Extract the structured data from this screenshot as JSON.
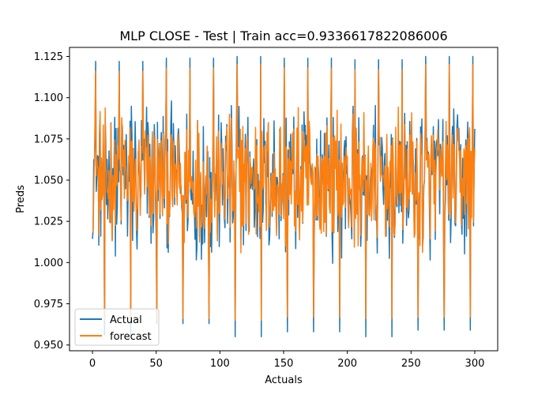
{
  "chart_data": {
    "type": "line",
    "title": "MLP CLOSE - Test | Train acc=0.9336617822086006",
    "xlabel": "Actuals",
    "ylabel": "Preds",
    "xlim": [
      -18,
      318
    ],
    "ylim": [
      0.9465,
      1.1305
    ],
    "xticks": [
      0,
      50,
      100,
      150,
      200,
      250,
      300
    ],
    "xtick_labels": [
      "0",
      "50",
      "100",
      "150",
      "200",
      "250",
      "300"
    ],
    "yticks": [
      0.95,
      0.975,
      1.0,
      1.025,
      1.05,
      1.075,
      1.1,
      1.125
    ],
    "ytick_labels": [
      "0.950",
      "0.975",
      "1.000",
      "1.025",
      "1.050",
      "1.075",
      "1.100",
      "1.125"
    ],
    "grid": false,
    "legend_position": "lower-left",
    "x_start": 0,
    "x_end": 300,
    "x_step": 0.5,
    "series": [
      {
        "name": "Actual",
        "color": "#1f77b4",
        "mean": 1.05,
        "amplitude": 0.045,
        "peak_values": [
          1.122,
          1.124,
          1.125,
          1.124,
          1.123,
          1.125
        ],
        "trough_values": [
          0.956,
          0.963,
          0.955,
          0.958,
          0.955,
          0.959
        ]
      },
      {
        "name": "forecast",
        "color": "#ff7f0e",
        "mean": 1.05,
        "amplitude": 0.04,
        "peak_values": [
          1.116,
          1.118,
          1.12,
          1.118,
          1.117,
          1.12
        ],
        "trough_values": [
          0.965,
          0.966,
          0.965,
          0.967,
          0.966,
          0.967
        ]
      }
    ]
  }
}
